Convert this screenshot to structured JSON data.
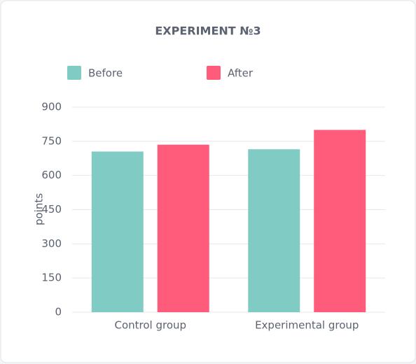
{
  "chart_data": {
    "type": "bar",
    "title": "EXPERIMENT №3",
    "y_label": "points",
    "categories": [
      "Control group",
      "Experimental group"
    ],
    "series": [
      {
        "name": "Before",
        "color": "#80cbc4",
        "values": [
          705,
          715
        ]
      },
      {
        "name": "After",
        "color": "#ff5c7c",
        "values": [
          735,
          800
        ]
      }
    ],
    "ylim": [
      0,
      900
    ],
    "yticks": [
      0,
      150,
      300,
      450,
      600,
      750,
      900
    ],
    "grid": true
  }
}
